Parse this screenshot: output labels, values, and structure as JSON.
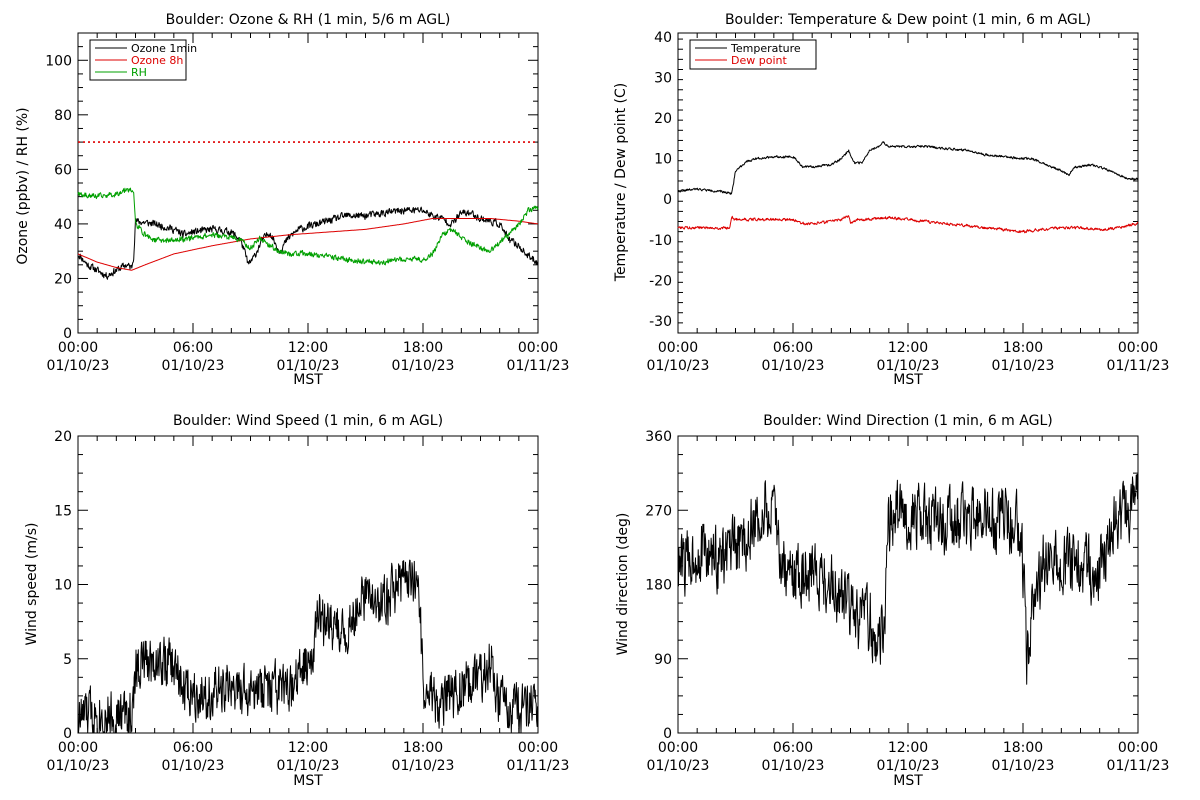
{
  "chart_data": [
    {
      "id": "ozone_rh",
      "type": "line",
      "title": "Boulder: Ozone & RH (1 min, 5/6 m AGL)",
      "xlabel": "MST",
      "ylabel": "Ozone (ppbv) / RH (%)",
      "xlim": [
        0,
        24
      ],
      "ylim": [
        0,
        110
      ],
      "yticks": [
        0,
        20,
        40,
        60,
        80,
        100
      ],
      "xticks": [
        {
          "hour": 0,
          "time": "00:00",
          "date": "01/10/23"
        },
        {
          "hour": 6,
          "time": "06:00",
          "date": "01/10/23"
        },
        {
          "hour": 12,
          "time": "12:00",
          "date": "01/10/23"
        },
        {
          "hour": 18,
          "time": "18:00",
          "date": "01/10/23"
        },
        {
          "hour": 24,
          "time": "00:00",
          "date": "01/11/23"
        }
      ],
      "legend": {
        "placement": "top-left"
      },
      "reference_line": {
        "y": 70,
        "color": "#dd0000",
        "style": "dotted"
      },
      "series": [
        {
          "name": "Ozone 1min",
          "color": "#000000",
          "noise": 1.2,
          "x": [
            0,
            0.5,
            1,
            1.5,
            2,
            2.5,
            2.8,
            2.9,
            3.0,
            4,
            5,
            5.5,
            6,
            7,
            8,
            8.5,
            8.9,
            9.2,
            9.6,
            10,
            10.5,
            11,
            11.5,
            12,
            13,
            14,
            15,
            16,
            17,
            18,
            18.5,
            19,
            19.5,
            20,
            20.5,
            21,
            21.5,
            22,
            22.5,
            23,
            23.5,
            24
          ],
          "y": [
            29,
            25,
            23,
            21,
            23,
            25,
            24,
            28,
            41,
            40,
            38,
            36,
            37,
            38,
            37,
            34,
            25,
            28,
            34,
            37,
            30,
            35,
            38,
            39,
            41,
            43,
            43,
            44,
            45,
            45,
            43,
            42,
            40,
            44,
            44,
            42,
            41,
            40,
            34,
            32,
            28,
            26
          ]
        },
        {
          "name": "Ozone 8h",
          "color": "#dd0000",
          "noise": 0,
          "x": [
            0,
            1,
            2,
            2.8,
            3.5,
            5,
            7,
            9,
            11,
            13,
            15,
            17,
            18.5,
            20,
            21.5,
            23,
            24
          ],
          "y": [
            29,
            26,
            24,
            23,
            25,
            29,
            32,
            34.5,
            36,
            37,
            38,
            40,
            42,
            42,
            42,
            41,
            40
          ]
        },
        {
          "name": "RH",
          "color": "#00a000",
          "noise": 0.9,
          "x": [
            0,
            1,
            2,
            2.6,
            2.9,
            3.0,
            3.5,
            4,
            5,
            6,
            7,
            8,
            8.5,
            9,
            9.5,
            10,
            10.5,
            11,
            12,
            13,
            14,
            15,
            16,
            17,
            18,
            18.5,
            19,
            19.5,
            20,
            21,
            21.5,
            22,
            22.5,
            23,
            23.5,
            24
          ],
          "y": [
            51,
            50,
            51,
            53,
            52,
            40,
            36,
            34,
            34,
            35,
            36,
            35,
            34,
            31,
            35,
            32,
            30,
            29,
            29,
            28,
            27,
            26,
            26,
            27,
            27,
            29,
            36,
            38,
            35,
            31,
            30,
            33,
            36,
            40,
            45,
            46
          ]
        }
      ]
    },
    {
      "id": "temp_dew",
      "type": "line",
      "title": "Boulder: Temperature & Dew point (1 min, 6 m AGL)",
      "xlabel": "MST",
      "ylabel": "Temperature / Dew point (C)",
      "xlim": [
        0,
        24
      ],
      "ylim": [
        -33,
        41
      ],
      "yticks": [
        -30,
        -20,
        -10,
        0,
        10,
        20,
        30,
        40
      ],
      "xticks": [
        {
          "hour": 0,
          "time": "00:00",
          "date": "01/10/23"
        },
        {
          "hour": 6,
          "time": "06:00",
          "date": "01/10/23"
        },
        {
          "hour": 12,
          "time": "12:00",
          "date": "01/10/23"
        },
        {
          "hour": 18,
          "time": "18:00",
          "date": "01/10/23"
        },
        {
          "hour": 24,
          "time": "00:00",
          "date": "01/11/23"
        }
      ],
      "legend": {
        "placement": "top-left"
      },
      "series": [
        {
          "name": "Temperature",
          "color": "#000000",
          "noise": 0.25,
          "x": [
            0,
            1,
            2,
            2.8,
            2.9,
            3.0,
            3.5,
            4,
            5,
            6,
            6.5,
            7,
            8,
            8.5,
            8.9,
            9.2,
            9.6,
            10,
            10.5,
            10.7,
            11,
            12,
            13,
            14,
            15,
            16,
            17,
            18,
            18.5,
            19,
            19.5,
            20,
            20.4,
            20.7,
            21,
            21.5,
            22,
            22.5,
            23,
            23.5,
            24
          ],
          "y": [
            2,
            2.5,
            2,
            1.5,
            4,
            7,
            9,
            10,
            10.5,
            10.5,
            8,
            8,
            8.5,
            10,
            12,
            9,
            9,
            12,
            13,
            14,
            13,
            13,
            13,
            12.5,
            12,
            11,
            10.5,
            10,
            10,
            9,
            8,
            7,
            6,
            8,
            8,
            8.5,
            8,
            7,
            6,
            5,
            5
          ]
        },
        {
          "name": "Dew point",
          "color": "#dd0000",
          "noise": 0.3,
          "x": [
            0,
            1,
            2,
            2.7,
            2.8,
            2.9,
            3.5,
            4,
            5,
            6,
            6.5,
            7,
            8,
            8.5,
            8.9,
            9.0,
            9.3,
            10,
            11,
            12,
            13,
            14,
            15,
            16,
            17,
            18,
            19,
            20,
            21,
            22,
            23,
            24
          ],
          "y": [
            -7,
            -7,
            -7.2,
            -7,
            -4,
            -5,
            -5,
            -5,
            -5,
            -5,
            -6,
            -6,
            -5.5,
            -5,
            -4,
            -6,
            -5,
            -5,
            -4.5,
            -5,
            -5.5,
            -6,
            -6.5,
            -7,
            -7.5,
            -8,
            -7.5,
            -7,
            -7,
            -7.5,
            -7,
            -6
          ]
        }
      ]
    },
    {
      "id": "wind_speed",
      "type": "line",
      "title": "Boulder: Wind Speed (1 min, 6 m AGL)",
      "xlabel": "MST",
      "ylabel": "Wind speed (m/s)",
      "xlim": [
        0,
        24
      ],
      "ylim": [
        0,
        20
      ],
      "yticks": [
        0,
        5,
        10,
        15,
        20
      ],
      "xticks": [
        {
          "hour": 0,
          "time": "00:00",
          "date": "01/10/23"
        },
        {
          "hour": 6,
          "time": "06:00",
          "date": "01/10/23"
        },
        {
          "hour": 12,
          "time": "12:00",
          "date": "01/10/23"
        },
        {
          "hour": 18,
          "time": "18:00",
          "date": "01/10/23"
        },
        {
          "hour": 24,
          "time": "00:00",
          "date": "01/11/23"
        }
      ],
      "series": [
        {
          "name": "",
          "color": "#000000",
          "noise": 1.6,
          "x": [
            0,
            1,
            2,
            2.9,
            3.0,
            4,
            5,
            5.5,
            6,
            7,
            8,
            9,
            10,
            11,
            11.5,
            12,
            12.5,
            13,
            14,
            15,
            16,
            17,
            17.8,
            18,
            18.5,
            19,
            20,
            21,
            21.5,
            22,
            23,
            24
          ],
          "y": [
            1,
            1.5,
            1,
            1.5,
            4.5,
            5,
            4.5,
            3,
            3,
            2.5,
            3,
            2.5,
            3,
            2.5,
            4,
            4.5,
            8,
            7,
            7,
            9,
            9,
            10.5,
            10,
            3,
            2.5,
            2,
            3,
            3.5,
            5,
            2,
            1.5,
            1.5
          ]
        }
      ]
    },
    {
      "id": "wind_dir",
      "type": "line",
      "title": "Boulder: Wind Direction (1 min, 6 m AGL)",
      "xlabel": "MST",
      "ylabel": "Wind direction (deg)",
      "xlim": [
        0,
        24
      ],
      "ylim": [
        0,
        360
      ],
      "yticks": [
        0,
        90,
        180,
        270,
        360
      ],
      "xticks": [
        {
          "hour": 0,
          "time": "00:00",
          "date": "01/10/23"
        },
        {
          "hour": 6,
          "time": "06:00",
          "date": "01/10/23"
        },
        {
          "hour": 12,
          "time": "12:00",
          "date": "01/10/23"
        },
        {
          "hour": 18,
          "time": "18:00",
          "date": "01/10/23"
        },
        {
          "hour": 24,
          "time": "00:00",
          "date": "01/11/23"
        }
      ],
      "series": [
        {
          "name": "",
          "color": "#000000",
          "noise": 35,
          "x": [
            0,
            1,
            2,
            3,
            4,
            4.5,
            5,
            5.5,
            6,
            7,
            8,
            9,
            9.5,
            10,
            10.5,
            10.8,
            11,
            12,
            13,
            14,
            15,
            16,
            17,
            17.9,
            18.2,
            18.5,
            19,
            20,
            21,
            22,
            23,
            24
          ],
          "y": [
            200,
            220,
            210,
            220,
            250,
            270,
            260,
            200,
            190,
            200,
            180,
            150,
            130,
            140,
            100,
            150,
            260,
            265,
            260,
            255,
            260,
            255,
            255,
            250,
            90,
            150,
            200,
            210,
            200,
            200,
            260,
            290
          ]
        }
      ]
    }
  ]
}
